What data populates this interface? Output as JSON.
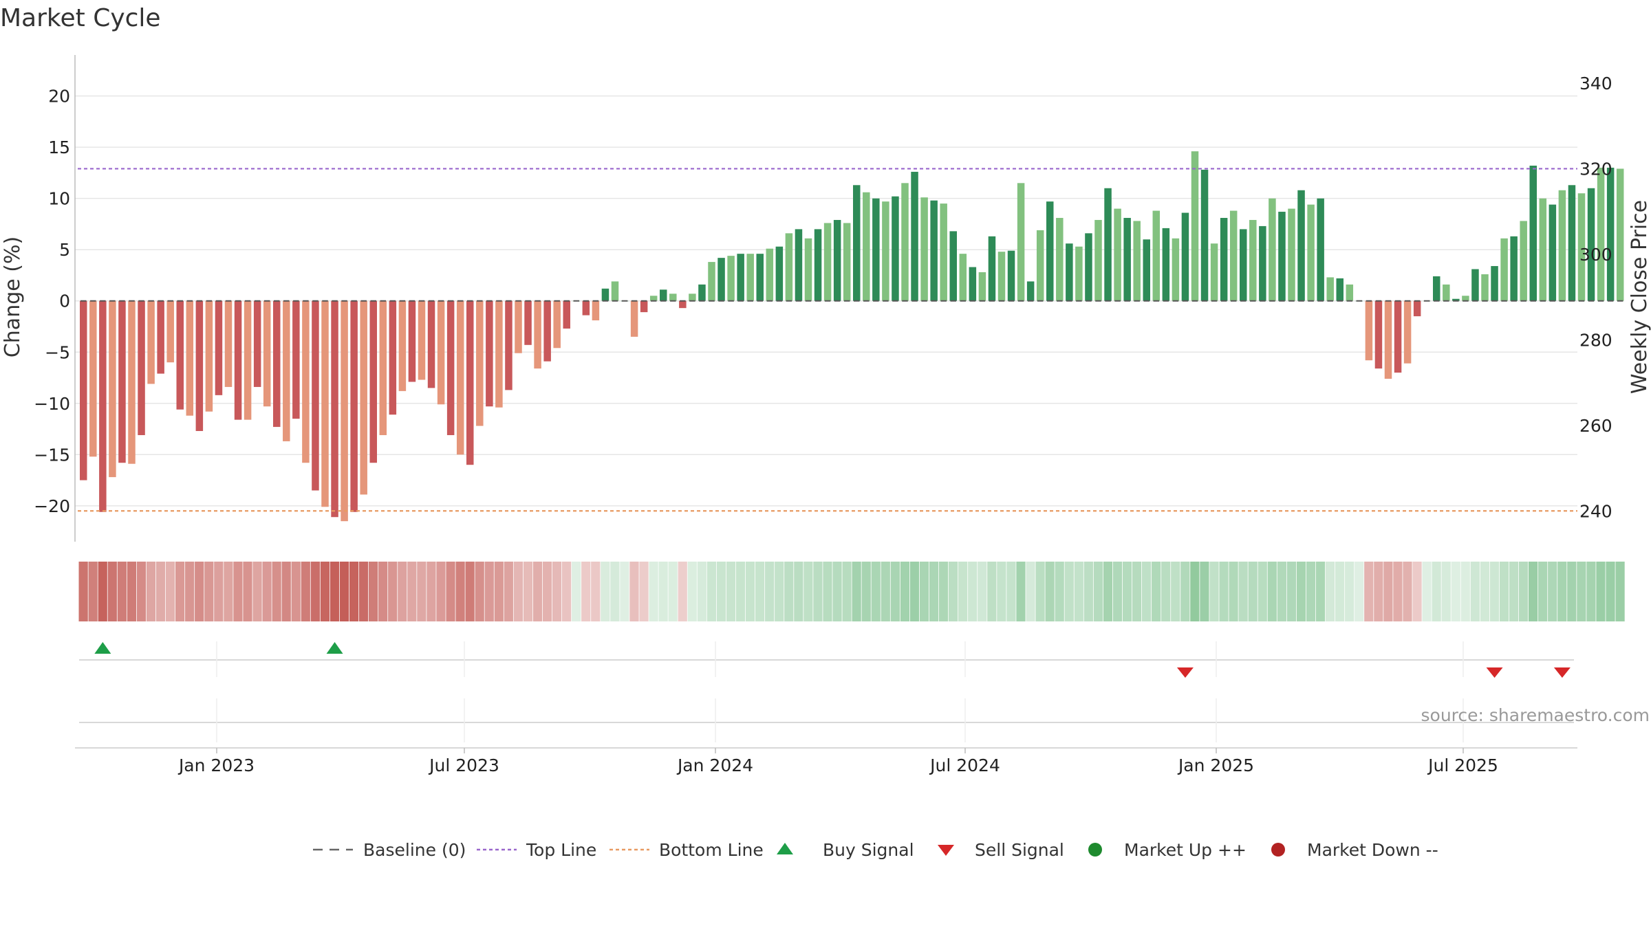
{
  "chart_data": {
    "type": "bar",
    "title": "Market Cycle",
    "ylabel_left": "Change (%)",
    "ylabel_right": "Weekly Close Price",
    "left_ylim": [
      -23.5,
      24
    ],
    "left_ticks": [
      20,
      15,
      10,
      5,
      0,
      -5,
      -10,
      -15,
      -20
    ],
    "right_ticks": [
      340,
      320,
      300,
      280,
      260,
      240
    ],
    "x_tick_labels": [
      "Jan 2023",
      "Jul 2023",
      "Jan 2024",
      "Jul 2024",
      "Jan 2025",
      "Jul 2025"
    ],
    "top_line": 12.9,
    "bottom_line": -20.5,
    "baseline": 0,
    "source": "source: sharemaestro.com",
    "colors": {
      "down_dark": "#c8585a",
      "down_light": "#e5967a",
      "up_dark": "#2e8b57",
      "up_light": "#82c17f",
      "top_line": "#9966cc",
      "bottom_line": "#e89a62",
      "buy": "#1e9e48",
      "sell": "#d62728"
    },
    "values": [
      -17.5,
      -15.2,
      -20.6,
      -17.2,
      -15.8,
      -15.9,
      -13.1,
      -8.1,
      -7.1,
      -6,
      -10.6,
      -11.2,
      -12.7,
      -10.8,
      -9.2,
      -8.4,
      -11.6,
      -11.6,
      -8.4,
      -10.3,
      -12.3,
      -13.7,
      -11.5,
      -15.8,
      -18.5,
      -20.1,
      -21.1,
      -21.5,
      -20.6,
      -18.9,
      -15.8,
      -13.1,
      -11.1,
      -8.8,
      -7.9,
      -7.7,
      -8.5,
      -10.1,
      -13.1,
      -15,
      -16,
      -12.2,
      -10.3,
      -10.4,
      -8.7,
      -5.1,
      -4.3,
      -6.6,
      -5.9,
      -4.6,
      -2.7,
      0,
      -1.4,
      -1.9,
      1.2,
      1.9,
      0,
      -3.5,
      -1.1,
      0.5,
      1.1,
      0.7,
      -0.7,
      0.7,
      1.6,
      3.8,
      4.2,
      4.4,
      4.6,
      4.6,
      4.6,
      5.1,
      5.3,
      6.6,
      7,
      6.1,
      7,
      7.6,
      7.9,
      7.6,
      11.3,
      10.6,
      10,
      9.7,
      10.2,
      11.5,
      12.6,
      10.1,
      9.8,
      9.5,
      6.8,
      4.6,
      3.3,
      2.8,
      6.3,
      4.8,
      4.9,
      11.5,
      1.9,
      6.9,
      9.7,
      8.1,
      5.6,
      5.3,
      6.6,
      7.9,
      11,
      9,
      8.1,
      7.8,
      6,
      8.8,
      7.1,
      6.1,
      8.6,
      14.6,
      12.8,
      5.6,
      8.1,
      8.8,
      7,
      7.9,
      7.3,
      10,
      8.7,
      9,
      10.8,
      9.4,
      10,
      2.3,
      2.2,
      1.6,
      0,
      -5.8,
      -6.6,
      -7.6,
      -7,
      -6.1,
      -1.5,
      0,
      2.4,
      1.6,
      0.2,
      0.5,
      3.1,
      2.6,
      3.4,
      6.1,
      6.3,
      7.8,
      13.2,
      10,
      9.4,
      10.8,
      11.3,
      10.5,
      11,
      13,
      13,
      12.9
    ],
    "signals": [
      {
        "type": "buy",
        "index": 2
      },
      {
        "type": "buy",
        "index": 26
      },
      {
        "type": "sell",
        "index": 114
      },
      {
        "type": "sell",
        "index": 146
      },
      {
        "type": "sell",
        "index": 153
      }
    ],
    "legend": [
      {
        "key": "baseline",
        "label": "Baseline (0)"
      },
      {
        "key": "top",
        "label": "Top Line"
      },
      {
        "key": "bottom",
        "label": "Bottom Line"
      },
      {
        "key": "buy",
        "label": "Buy Signal"
      },
      {
        "key": "sell",
        "label": "Sell Signal"
      },
      {
        "key": "up",
        "label": "Market Up ++"
      },
      {
        "key": "down",
        "label": "Market Down --"
      }
    ],
    "legend_colors": {
      "baseline": "#666666",
      "top": "#9966cc",
      "bottom": "#e89a62",
      "buy": "#1e9e48",
      "sell": "#d62728",
      "up": "#1e8a2e",
      "down": "#b22222"
    }
  }
}
